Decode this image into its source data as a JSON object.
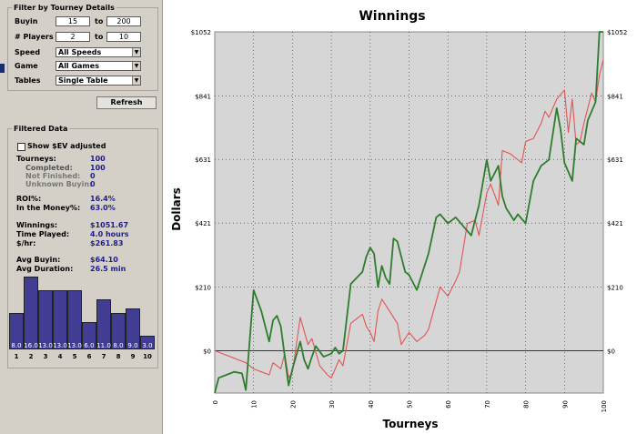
{
  "filter_panel": {
    "title": "Filter by Tourney Details",
    "buyin": {
      "label": "Buyin",
      "min": "15",
      "to": "to",
      "max": "200"
    },
    "players": {
      "label": "# Players",
      "min": "2",
      "to": "to",
      "max": "10"
    },
    "speed": {
      "label": "Speed",
      "value": "All Speeds"
    },
    "game": {
      "label": "Game",
      "value": "All Games"
    },
    "tables": {
      "label": "Tables",
      "value": "Single Table"
    },
    "refresh_label": "Refresh"
  },
  "filtered_data": {
    "title": "Filtered Data",
    "show_ev_label": "Show $EV adjusted",
    "show_ev_checked": false,
    "rows": [
      {
        "k": "Tourneys:",
        "v": "100"
      },
      {
        "k": "Completed:",
        "v": "100"
      },
      {
        "k": "Not Finished:",
        "v": "0"
      },
      {
        "k": "Unknown Buyin:",
        "v": "0"
      },
      {
        "k": "ROI%:",
        "v": "16.4%"
      },
      {
        "k": "In the Money%:",
        "v": "63.0%"
      },
      {
        "k": "Winnings:",
        "v": "$1051.67"
      },
      {
        "k": "Time Played:",
        "v": "4.0 hours"
      },
      {
        "k": "$/hr:",
        "v": "$261.83"
      },
      {
        "k": "Avg Buyin:",
        "v": "$64.10"
      },
      {
        "k": "Avg Duration:",
        "v": "26.5 min"
      }
    ]
  },
  "finish_histogram": {
    "places": [
      "1",
      "2",
      "3",
      "4",
      "5",
      "6",
      "7",
      "8",
      "9",
      "10"
    ],
    "values": [
      8.0,
      16.0,
      13.0,
      13.0,
      13.0,
      6.0,
      11.0,
      8.0,
      9.0,
      3.0
    ],
    "labels": [
      "8.0",
      "16.0",
      "13.0",
      "13.0",
      "13.0",
      "6.0",
      "11.0",
      "8.0",
      "9.0",
      "3.0"
    ],
    "bar_color": "#403d93"
  },
  "chart_data": {
    "type": "line",
    "title": "Winnings",
    "xlabel": "Tourneys",
    "ylabel": "Dollars",
    "xlim": [
      0,
      100
    ],
    "ylim": [
      -140,
      1052
    ],
    "x_ticks": [
      0,
      10,
      20,
      30,
      40,
      50,
      60,
      70,
      80,
      90,
      100
    ],
    "x_tick_labels": [
      "0",
      "10",
      "20",
      "30",
      "40",
      "50",
      "60",
      "70",
      "80",
      "90",
      "100"
    ],
    "y_ticks": [
      0,
      210,
      421,
      631,
      841,
      1052
    ],
    "y_tick_labels": [
      "$0",
      "$210",
      "$421",
      "$631",
      "$841",
      "$1052"
    ],
    "grid": true,
    "background": "#d6d6d6",
    "series": [
      {
        "color": "#2e7d2e",
        "x": [
          0,
          1,
          3,
          5,
          7,
          8,
          10,
          12,
          14,
          15,
          16,
          17,
          19,
          20,
          22,
          23,
          24,
          25,
          26,
          28,
          30,
          31,
          32,
          33,
          35,
          38,
          39,
          40,
          41,
          42,
          43,
          44,
          45,
          46,
          47,
          48,
          49,
          50,
          52,
          54,
          55,
          57,
          58,
          60,
          62,
          64,
          66,
          68,
          70,
          71,
          73,
          74,
          75,
          77,
          78,
          80,
          82,
          84,
          86,
          88,
          89,
          90,
          92,
          93,
          95,
          96,
          98,
          99,
          100
        ],
        "y": [
          -140,
          -90,
          -80,
          -70,
          -75,
          -130,
          200,
          130,
          30,
          100,
          115,
          80,
          -115,
          -60,
          30,
          -30,
          -60,
          -20,
          15,
          -20,
          -10,
          10,
          -10,
          0,
          220,
          260,
          310,
          340,
          320,
          210,
          280,
          240,
          220,
          370,
          360,
          310,
          260,
          250,
          200,
          280,
          320,
          440,
          450,
          420,
          440,
          410,
          380,
          480,
          630,
          560,
          610,
          510,
          470,
          430,
          450,
          420,
          560,
          610,
          630,
          800,
          730,
          620,
          560,
          700,
          680,
          760,
          820,
          1052,
          1052
        ]
      },
      {
        "color": "#e05555",
        "x": [
          0,
          2,
          4,
          6,
          8,
          10,
          12,
          14,
          15,
          17,
          18,
          19,
          20,
          22,
          24,
          25,
          27,
          29,
          30,
          31,
          32,
          33,
          35,
          37,
          38,
          39,
          40,
          41,
          42,
          43,
          45,
          47,
          48,
          50,
          52,
          54,
          55,
          58,
          60,
          62,
          63,
          65,
          67,
          68,
          70,
          71,
          73,
          74,
          76,
          77,
          79,
          80,
          82,
          84,
          85,
          86,
          88,
          90,
          91,
          92,
          93,
          94,
          95,
          97,
          98,
          99,
          100
        ],
        "y": [
          0,
          -10,
          -20,
          -30,
          -40,
          -60,
          -70,
          -80,
          -40,
          -60,
          -10,
          -90,
          -70,
          110,
          20,
          40,
          -50,
          -80,
          -90,
          -60,
          -30,
          -50,
          90,
          110,
          120,
          80,
          60,
          30,
          130,
          170,
          130,
          90,
          20,
          60,
          30,
          50,
          70,
          210,
          180,
          230,
          260,
          420,
          430,
          380,
          520,
          550,
          480,
          660,
          650,
          640,
          620,
          690,
          700,
          750,
          790,
          770,
          830,
          860,
          720,
          830,
          680,
          690,
          750,
          850,
          820,
          910,
          960
        ]
      }
    ]
  }
}
